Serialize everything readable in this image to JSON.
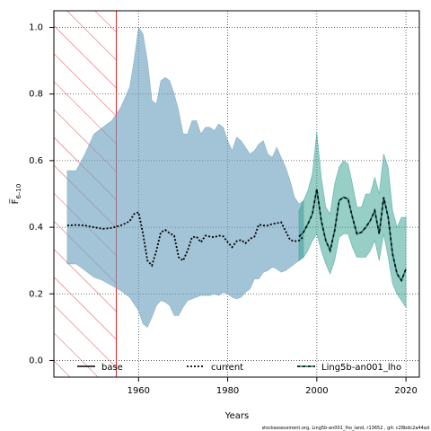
{
  "chart_data": {
    "type": "area",
    "xlabel": "Years",
    "ylabel": "F̅",
    "ylabel_sub": "6–10",
    "footer": "stockassessment.org, Ling5b-an001_lho_land, r13652 , git: c28bdc2a44ad",
    "xlim": [
      1941,
      2023
    ],
    "ylim": [
      -0.05,
      1.05
    ],
    "x_ticks": [
      1960,
      1980,
      2000,
      2020
    ],
    "y_ticks": [
      0.0,
      0.2,
      0.4,
      0.6,
      0.8,
      1.0
    ],
    "x_tick_labels": [
      "1960",
      "1980",
      "2000",
      "2020"
    ],
    "y_tick_labels": [
      "0.0",
      "0.2",
      "0.4",
      "0.6",
      "0.8",
      "1.0"
    ],
    "grid": true,
    "legend_position": "bottom",
    "hatched_region": {
      "x_start": 1941,
      "x_end": 1955,
      "color": "#e02020"
    },
    "series": [
      {
        "name": "base",
        "color": "#000000",
        "style": "solid",
        "x": [],
        "values": []
      },
      {
        "name": "current",
        "color": "#000000",
        "band_color": "#6a9fbd",
        "style": "dotted",
        "x": [
          1944,
          1946,
          1948,
          1950,
          1952,
          1954,
          1956,
          1958,
          1959,
          1960,
          1961,
          1962,
          1963,
          1964,
          1965,
          1966,
          1967,
          1968,
          1969,
          1970,
          1971,
          1972,
          1973,
          1974,
          1975,
          1976,
          1977,
          1978,
          1979,
          1980,
          1981,
          1982,
          1983,
          1984,
          1985,
          1986,
          1987,
          1988,
          1989,
          1990,
          1991,
          1992,
          1993,
          1994,
          1995,
          1996,
          1997
        ],
        "values": [
          0.405,
          0.407,
          0.405,
          0.4,
          0.395,
          0.398,
          0.405,
          0.418,
          0.44,
          0.445,
          0.38,
          0.3,
          0.285,
          0.33,
          0.385,
          0.392,
          0.382,
          0.375,
          0.31,
          0.3,
          0.33,
          0.37,
          0.372,
          0.355,
          0.375,
          0.372,
          0.37,
          0.375,
          0.373,
          0.355,
          0.34,
          0.358,
          0.362,
          0.352,
          0.365,
          0.372,
          0.408,
          0.405,
          0.405,
          0.41,
          0.412,
          0.415,
          0.388,
          0.362,
          0.358,
          0.36,
          0.372
        ],
        "upper": [
          0.57,
          0.57,
          0.62,
          0.68,
          0.7,
          0.72,
          0.76,
          0.82,
          0.9,
          1.0,
          0.98,
          0.9,
          0.78,
          0.77,
          0.84,
          0.85,
          0.84,
          0.8,
          0.75,
          0.68,
          0.68,
          0.72,
          0.72,
          0.68,
          0.7,
          0.7,
          0.69,
          0.71,
          0.7,
          0.66,
          0.63,
          0.67,
          0.66,
          0.64,
          0.62,
          0.63,
          0.65,
          0.66,
          0.62,
          0.61,
          0.64,
          0.61,
          0.58,
          0.54,
          0.49,
          0.47,
          0.48
        ],
        "lower": [
          0.29,
          0.29,
          0.27,
          0.25,
          0.24,
          0.225,
          0.21,
          0.19,
          0.17,
          0.15,
          0.11,
          0.1,
          0.13,
          0.165,
          0.18,
          0.175,
          0.165,
          0.135,
          0.135,
          0.16,
          0.18,
          0.185,
          0.19,
          0.195,
          0.195,
          0.195,
          0.2,
          0.195,
          0.205,
          0.2,
          0.19,
          0.185,
          0.19,
          0.205,
          0.215,
          0.245,
          0.245,
          0.265,
          0.27,
          0.28,
          0.275,
          0.265,
          0.27,
          0.28,
          0.29,
          0.3,
          0.31
        ]
      },
      {
        "name": "Ling5b-an001_lho",
        "color": "#000000",
        "band_color": "#2f9e8e",
        "line_color": "#1f6f6a",
        "style": "dashed",
        "x": [
          1996,
          1997,
          1998,
          1999,
          2000,
          2001,
          2002,
          2003,
          2004,
          2005,
          2006,
          2007,
          2008,
          2009,
          2010,
          2011,
          2012,
          2013,
          2014,
          2015,
          2016,
          2017,
          2018,
          2019,
          2020
        ],
        "values": [
          0.372,
          0.385,
          0.41,
          0.44,
          0.515,
          0.42,
          0.36,
          0.33,
          0.39,
          0.48,
          0.49,
          0.485,
          0.43,
          0.38,
          0.385,
          0.4,
          0.42,
          0.45,
          0.38,
          0.49,
          0.43,
          0.32,
          0.26,
          0.24,
          0.275
        ],
        "upper": [
          0.45,
          0.48,
          0.51,
          0.56,
          0.685,
          0.55,
          0.46,
          0.44,
          0.53,
          0.58,
          0.6,
          0.59,
          0.53,
          0.46,
          0.46,
          0.5,
          0.5,
          0.55,
          0.5,
          0.62,
          0.58,
          0.45,
          0.4,
          0.43,
          0.43
        ],
        "lower": [
          0.3,
          0.31,
          0.33,
          0.36,
          0.38,
          0.33,
          0.29,
          0.26,
          0.3,
          0.37,
          0.38,
          0.38,
          0.34,
          0.31,
          0.31,
          0.31,
          0.33,
          0.36,
          0.3,
          0.38,
          0.31,
          0.23,
          0.2,
          0.18,
          0.16
        ]
      }
    ]
  }
}
